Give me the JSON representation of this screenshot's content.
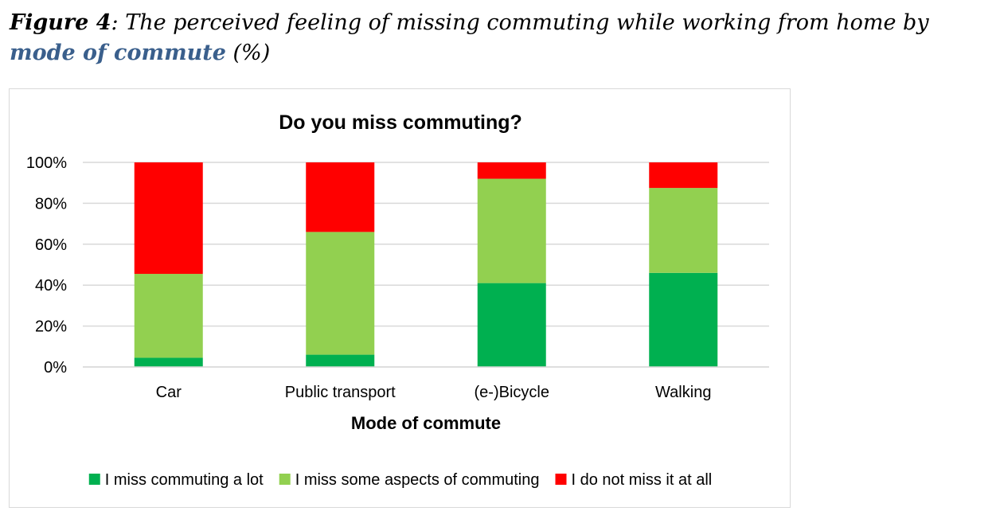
{
  "caption": {
    "label": "Figure 4",
    "text_before": ": The perceived feeling of missing commuting while working from home by ",
    "highlight": "mode of commute",
    "text_after": " (%)"
  },
  "chart_data": {
    "type": "bar",
    "stacked": true,
    "title": "Do you miss commuting?",
    "xlabel": "Mode of commute",
    "ylabel": "",
    "ylim": [
      0,
      100
    ],
    "yticks": [
      "0%",
      "20%",
      "40%",
      "60%",
      "80%",
      "100%"
    ],
    "grid": true,
    "legend_position": "bottom",
    "categories": [
      "Car",
      "Public transport",
      "(e-)Bicycle",
      "Walking"
    ],
    "series": [
      {
        "name": "I miss commuting a lot",
        "color": "#00b050",
        "values": [
          4.5,
          6,
          41,
          46
        ]
      },
      {
        "name": "I miss some aspects of commuting",
        "color": "#92d050",
        "values": [
          41,
          60,
          51,
          41.5
        ]
      },
      {
        "name": "I do not miss it at all",
        "color": "#ff0000",
        "values": [
          54.5,
          34,
          8,
          12.5
        ]
      }
    ],
    "gridline_color": "#d9d9d9"
  }
}
